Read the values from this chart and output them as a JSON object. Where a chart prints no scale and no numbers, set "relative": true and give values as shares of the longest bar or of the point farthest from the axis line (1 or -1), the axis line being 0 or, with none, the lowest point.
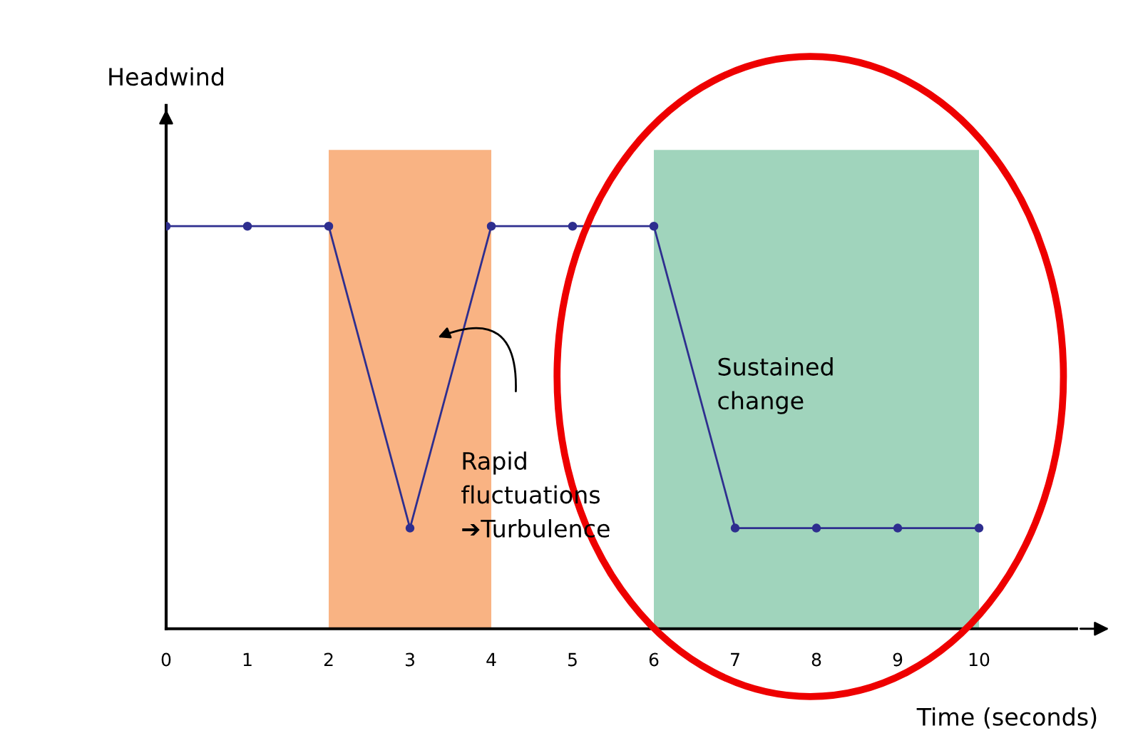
{
  "chart_data": {
    "type": "line",
    "relative": true,
    "xlabel": "Time (seconds)",
    "x": [
      0,
      1,
      2,
      3,
      4,
      5,
      6,
      7,
      8,
      9,
      10
    ],
    "series": [
      {
        "color": "#2e2e8f",
        "values": [
          1,
          1,
          1,
          0.25,
          1,
          1,
          1,
          0.25,
          0.25,
          0.25,
          0.25
        ]
      }
    ],
    "xlim": [
      0,
      11.2
    ],
    "xticks": [
      0,
      1,
      2,
      3,
      4,
      5,
      6,
      7,
      8,
      9,
      10
    ],
    "bands": [
      {
        "axis": "x",
        "from": 2,
        "to": 4,
        "color": "#f9b383"
      },
      {
        "axis": "x",
        "from": 6,
        "to": 10,
        "color": "#a0d4bc"
      }
    ],
    "annotations": [
      "Rapid\nfluctuations\n➔Turbulence",
      "Sustained\nchange",
      "Headwind"
    ],
    "marker": "circle",
    "line_style": "solid",
    "grid": false,
    "legend": false
  }
}
